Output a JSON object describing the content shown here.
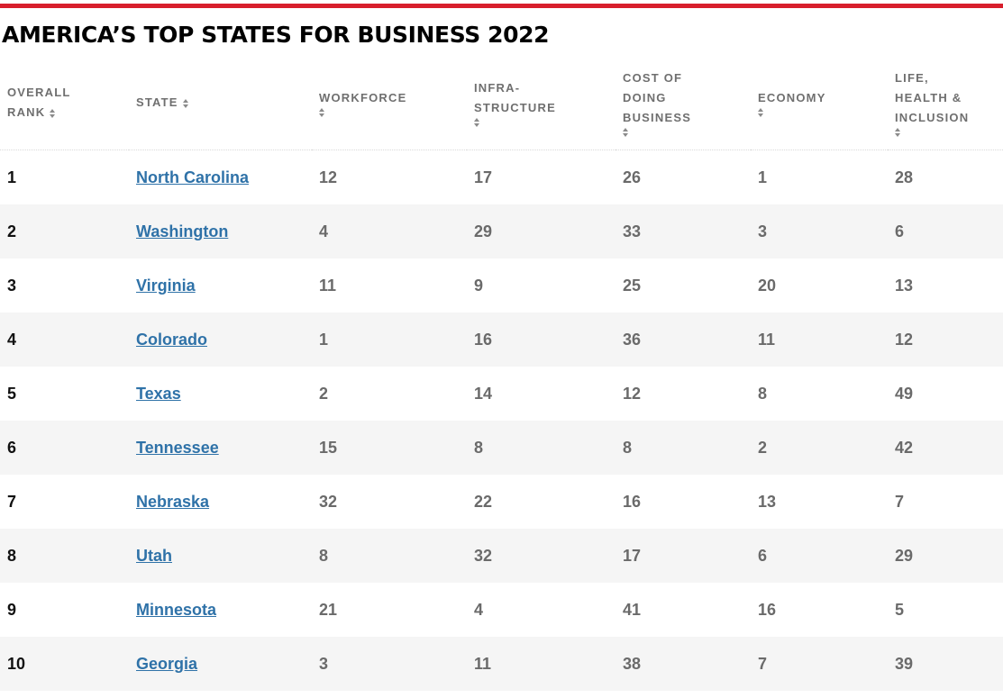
{
  "title": "AMERICA’S TOP STATES FOR BUSINESS 2022",
  "columns": {
    "rank": [
      "OVERALL",
      "RANK"
    ],
    "state": [
      "STATE"
    ],
    "workforce": [
      "WORKFORCE"
    ],
    "infrastructure": [
      "INFRA-",
      "STRUCTURE"
    ],
    "cost": [
      "COST OF",
      "DOING",
      "BUSINESS"
    ],
    "economy": [
      "ECONOMY"
    ],
    "life": [
      "LIFE,",
      "HEALTH &",
      "INCLUSION"
    ]
  },
  "rows": [
    {
      "rank": "1",
      "state": "North Carolina",
      "workforce": "12",
      "infrastructure": "17",
      "cost": "26",
      "economy": "1",
      "life": "28"
    },
    {
      "rank": "2",
      "state": "Washington",
      "workforce": "4",
      "infrastructure": "29",
      "cost": "33",
      "economy": "3",
      "life": "6"
    },
    {
      "rank": "3",
      "state": "Virginia",
      "workforce": "11",
      "infrastructure": "9",
      "cost": "25",
      "economy": "20",
      "life": "13"
    },
    {
      "rank": "4",
      "state": "Colorado",
      "workforce": "1",
      "infrastructure": "16",
      "cost": "36",
      "economy": "11",
      "life": "12"
    },
    {
      "rank": "5",
      "state": "Texas",
      "workforce": "2",
      "infrastructure": "14",
      "cost": "12",
      "economy": "8",
      "life": "49"
    },
    {
      "rank": "6",
      "state": "Tennessee",
      "workforce": "15",
      "infrastructure": "8",
      "cost": "8",
      "economy": "2",
      "life": "42"
    },
    {
      "rank": "7",
      "state": "Nebraska",
      "workforce": "32",
      "infrastructure": "22",
      "cost": "16",
      "economy": "13",
      "life": "7"
    },
    {
      "rank": "8",
      "state": "Utah",
      "workforce": "8",
      "infrastructure": "32",
      "cost": "17",
      "economy": "6",
      "life": "29"
    },
    {
      "rank": "9",
      "state": "Minnesota",
      "workforce": "21",
      "infrastructure": "4",
      "cost": "41",
      "economy": "16",
      "life": "5"
    },
    {
      "rank": "10",
      "state": "Georgia",
      "workforce": "3",
      "infrastructure": "11",
      "cost": "38",
      "economy": "7",
      "life": "39"
    }
  ],
  "colors": {
    "accent_bar": "#d81e2c",
    "link": "#2f72a8",
    "header_text": "#6f6f6f",
    "stripe": "#f5f5f5"
  },
  "icons": {
    "sort": "sort-arrows-icon"
  }
}
